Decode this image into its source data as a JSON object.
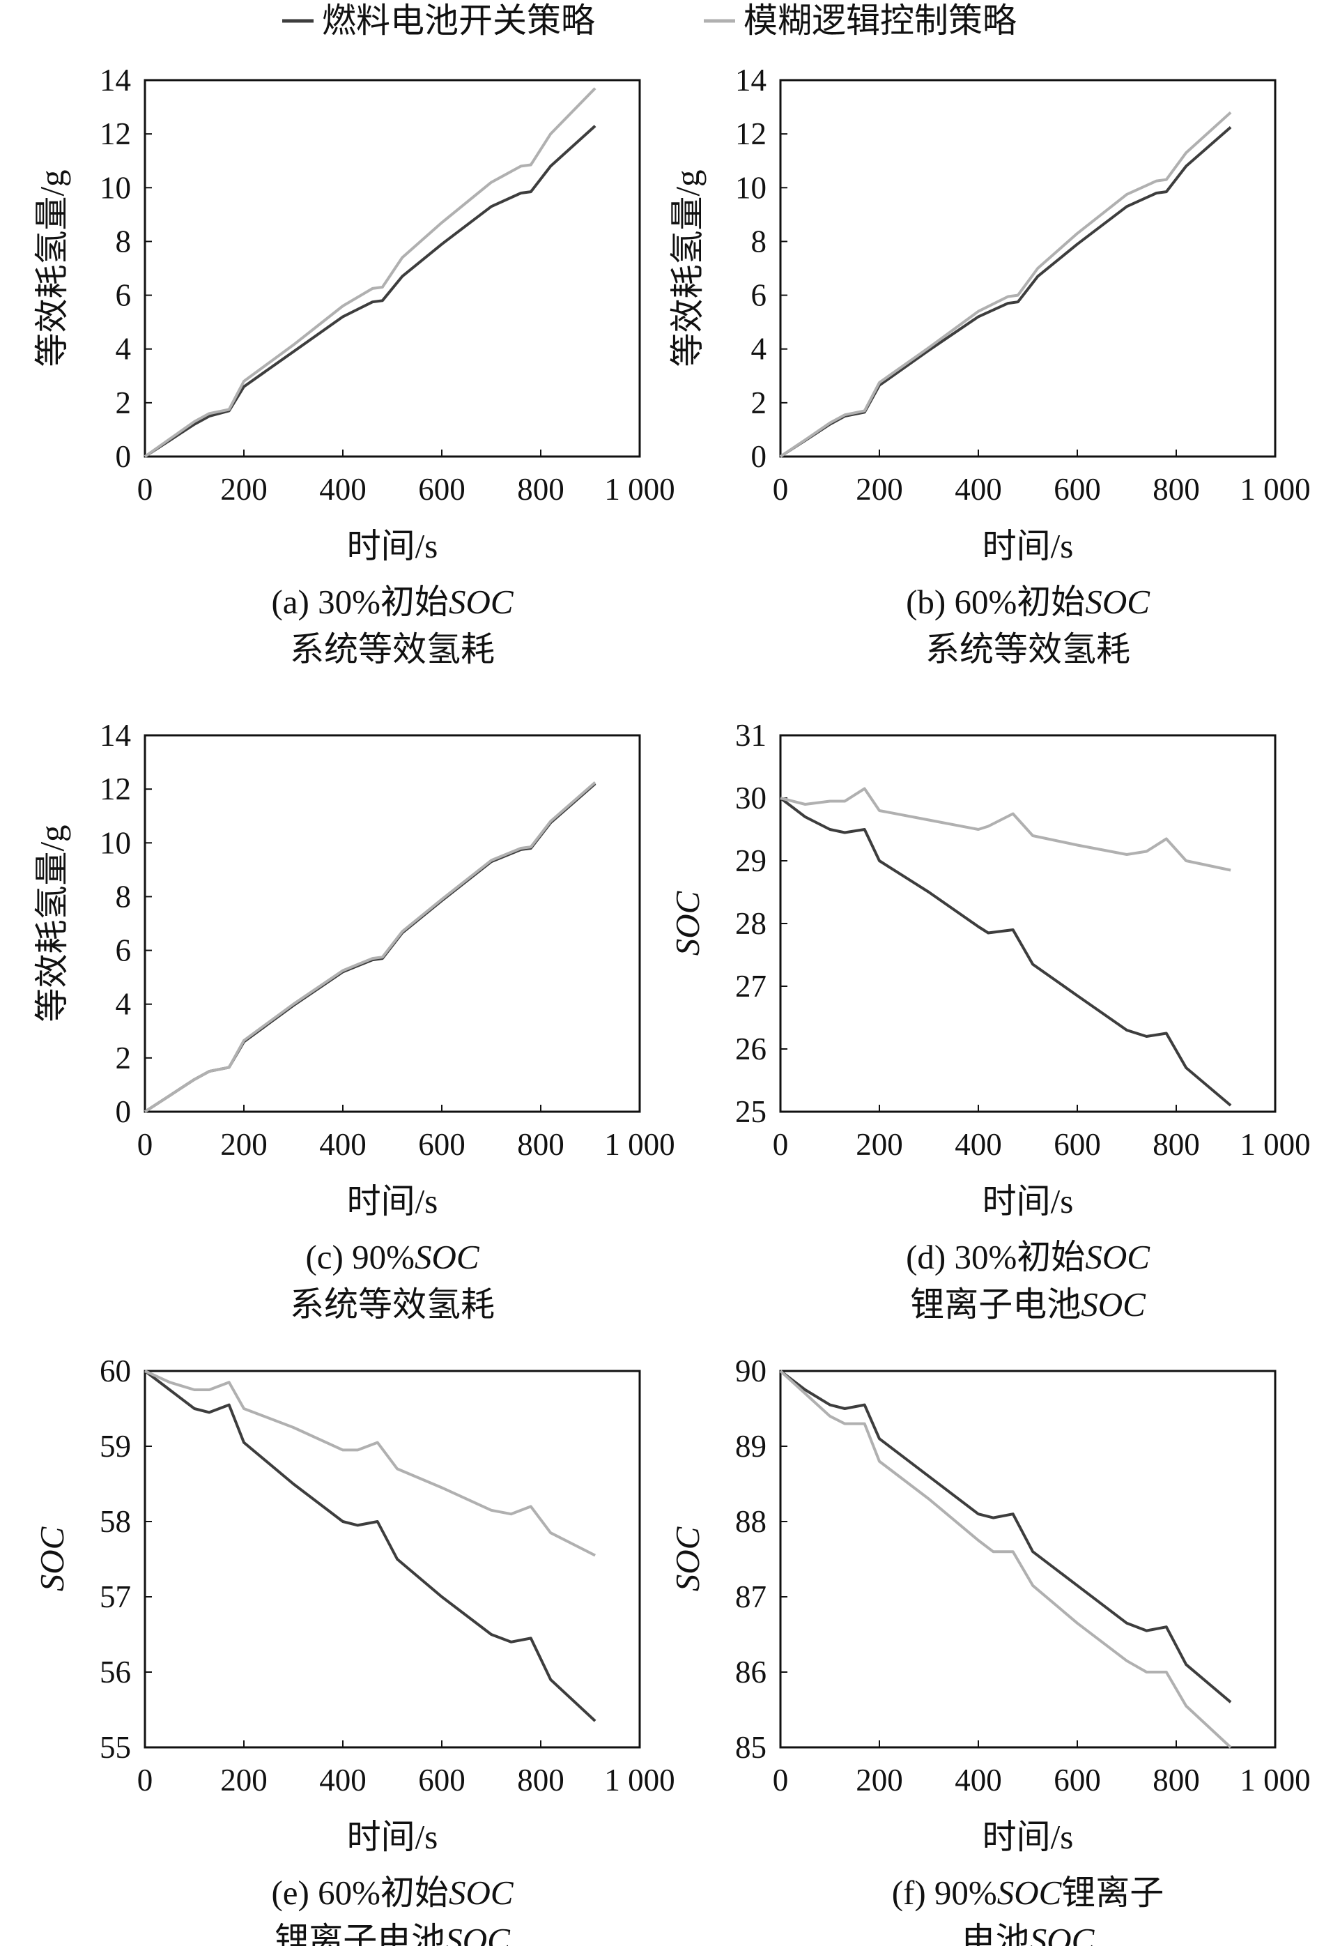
{
  "legend": [
    {
      "label": "燃料电池开关策略",
      "color": "#3d3d3d"
    },
    {
      "label": "模糊逻辑控制策略",
      "color": "#b0b0b0"
    }
  ],
  "chart_data": [
    {
      "id": "a",
      "type": "line",
      "xlabel": "时间/s",
      "ylabel": "等效耗氢量/g",
      "xlim": [
        0,
        1000
      ],
      "ylim": [
        0,
        14
      ],
      "xticks": [
        "0",
        "200",
        "400",
        "600",
        "800",
        "1 000"
      ],
      "yticks": [
        "0",
        "2",
        "4",
        "6",
        "8",
        "10",
        "12",
        "14"
      ],
      "caption_line1": [
        "(a) 30%初始",
        "SOC"
      ],
      "caption_line2": [
        "系统等效氢耗"
      ],
      "series": [
        {
          "name": "燃料电池开关策略",
          "x": [
            0,
            50,
            100,
            130,
            170,
            200,
            300,
            400,
            460,
            480,
            520,
            600,
            700,
            760,
            780,
            820,
            910
          ],
          "y": [
            0,
            0.6,
            1.2,
            1.5,
            1.7,
            2.6,
            3.9,
            5.2,
            5.75,
            5.8,
            6.7,
            7.9,
            9.3,
            9.8,
            9.85,
            10.8,
            12.3
          ]
        },
        {
          "name": "模糊逻辑控制策略",
          "x": [
            0,
            50,
            100,
            130,
            170,
            200,
            300,
            400,
            460,
            480,
            520,
            600,
            700,
            760,
            780,
            820,
            910
          ],
          "y": [
            0,
            0.65,
            1.3,
            1.6,
            1.75,
            2.8,
            4.15,
            5.6,
            6.25,
            6.3,
            7.4,
            8.7,
            10.2,
            10.8,
            10.85,
            12.0,
            13.7
          ]
        }
      ]
    },
    {
      "id": "b",
      "type": "line",
      "xlabel": "时间/s",
      "ylabel": "等效耗氢量/g",
      "xlim": [
        0,
        1000
      ],
      "ylim": [
        0,
        14
      ],
      "xticks": [
        "0",
        "200",
        "400",
        "600",
        "800",
        "1 000"
      ],
      "yticks": [
        "0",
        "2",
        "4",
        "6",
        "8",
        "10",
        "12",
        "14"
      ],
      "caption_line1": [
        "(b) 60%初始",
        "SOC"
      ],
      "caption_line2": [
        "系统等效氢耗"
      ],
      "series": [
        {
          "name": "燃料电池开关策略",
          "x": [
            0,
            50,
            100,
            130,
            170,
            200,
            300,
            400,
            460,
            480,
            520,
            600,
            700,
            760,
            780,
            820,
            910
          ],
          "y": [
            0,
            0.6,
            1.2,
            1.5,
            1.65,
            2.65,
            3.95,
            5.2,
            5.7,
            5.75,
            6.7,
            7.9,
            9.3,
            9.8,
            9.85,
            10.8,
            12.25
          ]
        },
        {
          "name": "模糊逻辑控制策略",
          "x": [
            0,
            50,
            100,
            130,
            170,
            200,
            300,
            400,
            460,
            480,
            520,
            600,
            700,
            760,
            780,
            820,
            910
          ],
          "y": [
            0,
            0.62,
            1.25,
            1.55,
            1.7,
            2.75,
            4.05,
            5.4,
            5.95,
            6.0,
            7.0,
            8.3,
            9.75,
            10.25,
            10.3,
            11.3,
            12.8
          ]
        }
      ]
    },
    {
      "id": "c",
      "type": "line",
      "xlabel": "时间/s",
      "ylabel": "等效耗氢量/g",
      "xlim": [
        0,
        1000
      ],
      "ylim": [
        0,
        14
      ],
      "xticks": [
        "0",
        "200",
        "400",
        "600",
        "800",
        "1 000"
      ],
      "yticks": [
        "0",
        "2",
        "4",
        "6",
        "8",
        "10",
        "12",
        "14"
      ],
      "caption_line1": [
        "(c) 90%",
        "SOC"
      ],
      "caption_line2": [
        "系统等效氢耗"
      ],
      "series": [
        {
          "name": "燃料电池开关策略",
          "x": [
            0,
            50,
            100,
            130,
            170,
            200,
            300,
            400,
            460,
            480,
            520,
            600,
            700,
            760,
            780,
            820,
            910
          ],
          "y": [
            0,
            0.6,
            1.2,
            1.5,
            1.65,
            2.6,
            3.95,
            5.2,
            5.65,
            5.7,
            6.65,
            7.85,
            9.3,
            9.75,
            9.8,
            10.75,
            12.2
          ]
        },
        {
          "name": "模糊逻辑控制策略",
          "x": [
            0,
            50,
            100,
            130,
            170,
            200,
            300,
            400,
            460,
            480,
            520,
            600,
            700,
            760,
            780,
            820,
            910
          ],
          "y": [
            0,
            0.6,
            1.2,
            1.5,
            1.65,
            2.65,
            4.0,
            5.25,
            5.7,
            5.75,
            6.7,
            7.9,
            9.35,
            9.8,
            9.85,
            10.8,
            12.25
          ]
        }
      ]
    },
    {
      "id": "d",
      "type": "line",
      "xlabel": "时间/s",
      "ylabel": "SOC",
      "xlim": [
        0,
        1000
      ],
      "ylim": [
        25,
        31
      ],
      "xticks": [
        "0",
        "200",
        "400",
        "600",
        "800",
        "1 000"
      ],
      "yticks": [
        "25",
        "26",
        "27",
        "28",
        "29",
        "30",
        "31"
      ],
      "caption_line1": [
        "(d) 30%初始",
        "SOC"
      ],
      "caption_line2": [
        "锂离子电池",
        "SOC"
      ],
      "series": [
        {
          "name": "燃料电池开关策略",
          "x": [
            0,
            50,
            100,
            130,
            170,
            200,
            300,
            400,
            420,
            470,
            510,
            600,
            700,
            740,
            780,
            820,
            910
          ],
          "y": [
            30,
            29.7,
            29.5,
            29.45,
            29.5,
            29.0,
            28.5,
            27.95,
            27.85,
            27.9,
            27.35,
            26.85,
            26.3,
            26.2,
            26.25,
            25.7,
            25.1
          ]
        },
        {
          "name": "模糊逻辑控制策略",
          "x": [
            0,
            50,
            100,
            130,
            170,
            200,
            300,
            400,
            420,
            470,
            510,
            600,
            700,
            740,
            780,
            820,
            910
          ],
          "y": [
            30,
            29.9,
            29.95,
            29.95,
            30.15,
            29.8,
            29.65,
            29.5,
            29.55,
            29.75,
            29.4,
            29.25,
            29.1,
            29.15,
            29.35,
            29.0,
            28.85
          ]
        }
      ]
    },
    {
      "id": "e",
      "type": "line",
      "xlabel": "时间/s",
      "ylabel": "SOC",
      "xlim": [
        0,
        1000
      ],
      "ylim": [
        55,
        60
      ],
      "xticks": [
        "0",
        "200",
        "400",
        "600",
        "800",
        "1 000"
      ],
      "yticks": [
        "55",
        "56",
        "57",
        "58",
        "59",
        "60"
      ],
      "caption_line1": [
        "(e) 60%初始",
        "SOC"
      ],
      "caption_line2": [
        "锂离子电池",
        "SOC"
      ],
      "series": [
        {
          "name": "燃料电池开关策略",
          "x": [
            0,
            50,
            100,
            130,
            170,
            200,
            300,
            400,
            430,
            470,
            510,
            600,
            700,
            740,
            780,
            820,
            910
          ],
          "y": [
            60,
            59.75,
            59.5,
            59.45,
            59.55,
            59.05,
            58.5,
            58.0,
            57.95,
            58.0,
            57.5,
            57.0,
            56.5,
            56.4,
            56.45,
            55.9,
            55.35
          ]
        },
        {
          "name": "模糊逻辑控制策略",
          "x": [
            0,
            50,
            100,
            130,
            170,
            200,
            300,
            400,
            430,
            470,
            510,
            600,
            700,
            740,
            780,
            820,
            910
          ],
          "y": [
            60,
            59.85,
            59.75,
            59.75,
            59.85,
            59.5,
            59.25,
            58.95,
            58.95,
            59.05,
            58.7,
            58.45,
            58.15,
            58.1,
            58.2,
            57.85,
            57.55
          ]
        }
      ]
    },
    {
      "id": "f",
      "type": "line",
      "xlabel": "时间/s",
      "ylabel": "SOC",
      "xlim": [
        0,
        1000
      ],
      "ylim": [
        85,
        90
      ],
      "xticks": [
        "0",
        "200",
        "400",
        "600",
        "800",
        "1 000"
      ],
      "yticks": [
        "85",
        "86",
        "87",
        "88",
        "89",
        "90"
      ],
      "caption_line1": [
        "(f) 90%",
        "SOC",
        "锂离子"
      ],
      "caption_line2": [
        "电池",
        "SOC"
      ],
      "series": [
        {
          "name": "燃料电池开关策略",
          "x": [
            0,
            50,
            100,
            130,
            170,
            200,
            300,
            400,
            430,
            470,
            510,
            600,
            700,
            740,
            780,
            820,
            910
          ],
          "y": [
            90,
            89.75,
            89.55,
            89.5,
            89.55,
            89.1,
            88.6,
            88.1,
            88.05,
            88.1,
            87.6,
            87.15,
            86.65,
            86.55,
            86.6,
            86.1,
            85.6
          ]
        },
        {
          "name": "模糊逻辑控制策略",
          "x": [
            0,
            50,
            100,
            130,
            170,
            200,
            300,
            400,
            430,
            470,
            510,
            600,
            700,
            740,
            780,
            820,
            910
          ],
          "y": [
            90,
            89.7,
            89.4,
            89.3,
            89.3,
            88.8,
            88.3,
            87.75,
            87.6,
            87.6,
            87.15,
            86.65,
            86.15,
            86.0,
            86.0,
            85.55,
            85.0
          ]
        }
      ]
    }
  ]
}
